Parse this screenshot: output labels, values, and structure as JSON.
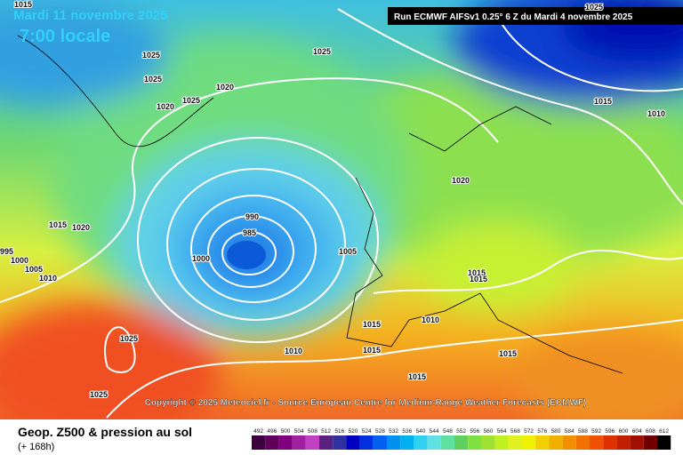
{
  "header": {
    "date": "Mardi 11 novembre 2025",
    "time": "7:00 locale",
    "run": "Run ECMWF AIFSv1 0.25° 6 Z du Mardi 4 novembre 2025"
  },
  "copyright": "Copyright © 2025 Meteociel.fr - Source European Centre for Medium-Range Weather Forecasts (ECMWF)",
  "isobar_labels": [
    "1015",
    "1025",
    "1025",
    "1020",
    "1025",
    "1020",
    "1025",
    "1025",
    "1015",
    "1010",
    "1020",
    "990",
    "985",
    "1000",
    "1005",
    "1015",
    "1020",
    "995",
    "1000",
    "1005",
    "1010",
    "1015",
    "1015",
    "1010",
    "1015",
    "1025",
    "1010",
    "1015",
    "1015",
    "1015",
    "1025"
  ],
  "footer": {
    "title": "Geop. Z500 & pression au sol",
    "lead": "(+ 168h)"
  },
  "colorbar": {
    "labels": [
      492,
      496,
      500,
      504,
      508,
      512,
      516,
      520,
      524,
      528,
      532,
      536,
      540,
      544,
      548,
      552,
      556,
      560,
      564,
      568,
      572,
      576,
      580,
      584,
      588,
      592,
      596,
      600,
      604,
      608,
      612
    ],
    "colors": [
      "#3a0040",
      "#60005a",
      "#800080",
      "#a020a0",
      "#c040c0",
      "#5a2080",
      "#3030a0",
      "#0000c0",
      "#0030e0",
      "#0060f0",
      "#0090f0",
      "#00b0f0",
      "#30d0f0",
      "#60e0e0",
      "#60e0a0",
      "#60d060",
      "#80e040",
      "#a0e030",
      "#c0f020",
      "#e0f020",
      "#f0f000",
      "#f0d000",
      "#f0b000",
      "#f09000",
      "#f07000",
      "#f05000",
      "#e03000",
      "#c02000",
      "#a01000",
      "#700000",
      "#000000"
    ]
  }
}
